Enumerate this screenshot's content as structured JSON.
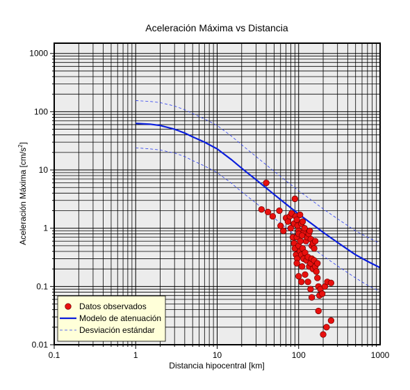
{
  "chart_data": {
    "type": "scatter",
    "title": "Aceleración Máxima vs Distancia",
    "xlabel": "Distancia hipocentral [km]",
    "ylabel_main": "Aceleración Máxima [cm/s",
    "ylabel_sup": "2",
    "ylabel_close": "]",
    "x_scale": "log",
    "y_scale": "log",
    "xlim": [
      0.1,
      1000
    ],
    "ylim": [
      0.01,
      1500
    ],
    "x_ticks": [
      {
        "value": 0.1,
        "label": "0.1"
      },
      {
        "value": 1,
        "label": "1"
      },
      {
        "value": 10,
        "label": "10"
      },
      {
        "value": 100,
        "label": "100"
      },
      {
        "value": 1000,
        "label": "1000"
      }
    ],
    "y_ticks": [
      {
        "value": 0.01,
        "label": "0.01"
      },
      {
        "value": 0.1,
        "label": "0.1"
      },
      {
        "value": 1,
        "label": "1"
      },
      {
        "value": 10,
        "label": "10"
      },
      {
        "value": 100,
        "label": "100"
      },
      {
        "value": 1000,
        "label": "1000"
      }
    ],
    "grid": true,
    "legend_position": "bottom-left",
    "colors": {
      "plot_background": "#ececec",
      "points": "#e8100e",
      "model_line": "#0a1edc",
      "deviation_line": "#2a3cf0",
      "legend_background": "#ffffd9"
    },
    "series": [
      {
        "name": "Datos observados",
        "kind": "points",
        "points": [
          [
            40,
            6.0
          ],
          [
            35,
            2.1
          ],
          [
            42,
            1.9
          ],
          [
            48,
            1.6
          ],
          [
            58,
            2.0
          ],
          [
            60,
            1.1
          ],
          [
            65,
            0.9
          ],
          [
            70,
            1.5
          ],
          [
            74,
            1.3
          ],
          [
            78,
            1.6
          ],
          [
            80,
            1.0
          ],
          [
            82,
            1.8
          ],
          [
            85,
            0.7
          ],
          [
            88,
            1.2
          ],
          [
            90,
            3.2
          ],
          [
            92,
            1.6
          ],
          [
            95,
            1.4
          ],
          [
            97,
            1.1
          ],
          [
            100,
            0.9
          ],
          [
            104,
            1.7
          ],
          [
            108,
            1.2
          ],
          [
            112,
            1.3
          ],
          [
            115,
            0.85
          ],
          [
            118,
            1.0
          ],
          [
            123,
            0.6
          ],
          [
            128,
            0.7
          ],
          [
            133,
            0.8
          ],
          [
            137,
            0.9
          ],
          [
            141,
            0.65
          ],
          [
            145,
            0.5
          ],
          [
            150,
            0.55
          ],
          [
            155,
            0.45
          ],
          [
            160,
            0.6
          ],
          [
            88,
            0.55
          ],
          [
            90,
            0.45
          ],
          [
            93,
            0.35
          ],
          [
            96,
            0.3
          ],
          [
            100,
            0.5
          ],
          [
            104,
            0.4
          ],
          [
            108,
            0.35
          ],
          [
            112,
            0.45
          ],
          [
            115,
            0.3
          ],
          [
            120,
            0.38
          ],
          [
            125,
            0.28
          ],
          [
            130,
            0.32
          ],
          [
            135,
            0.22
          ],
          [
            140,
            0.25
          ],
          [
            145,
            0.3
          ],
          [
            150,
            0.2
          ],
          [
            155,
            0.28
          ],
          [
            160,
            0.22
          ],
          [
            165,
            0.18
          ],
          [
            170,
            0.25
          ],
          [
            95,
            0.25
          ],
          [
            110,
            0.22
          ],
          [
            100,
            0.15
          ],
          [
            108,
            0.12
          ],
          [
            120,
            0.16
          ],
          [
            130,
            0.12
          ],
          [
            140,
            0.09
          ],
          [
            145,
            0.065
          ],
          [
            170,
            0.14
          ],
          [
            175,
            0.1
          ],
          [
            180,
            0.07
          ],
          [
            185,
            0.09
          ],
          [
            195,
            0.075
          ],
          [
            210,
            0.1
          ],
          [
            225,
            0.12
          ],
          [
            250,
            0.115
          ],
          [
            175,
            0.038
          ],
          [
            200,
            0.015
          ],
          [
            220,
            0.02
          ],
          [
            250,
            0.026
          ],
          [
            95,
            0.7
          ],
          [
            105,
            0.6
          ],
          [
            100,
            0.8
          ],
          [
            110,
            0.75
          ]
        ]
      },
      {
        "name": "Modelo de atenuación",
        "kind": "line",
        "style": "solid",
        "points": [
          [
            1,
            63
          ],
          [
            1.5,
            61
          ],
          [
            2,
            58
          ],
          [
            3,
            50
          ],
          [
            4,
            43
          ],
          [
            5,
            37
          ],
          [
            7,
            30
          ],
          [
            10,
            23
          ],
          [
            15,
            15
          ],
          [
            20,
            10.7
          ],
          [
            30,
            6.8
          ],
          [
            50,
            3.8
          ],
          [
            70,
            2.6
          ],
          [
            100,
            1.75
          ],
          [
            150,
            1.15
          ],
          [
            200,
            0.85
          ],
          [
            300,
            0.57
          ],
          [
            500,
            0.35
          ],
          [
            700,
            0.27
          ],
          [
            1000,
            0.21
          ]
        ]
      },
      {
        "name": "Desviación estándar",
        "kind": "line",
        "style": "dashed",
        "points": [
          [
            1,
            155
          ],
          [
            1.5,
            150
          ],
          [
            2,
            143
          ],
          [
            3,
            125
          ],
          [
            4,
            108
          ],
          [
            5,
            93
          ],
          [
            7,
            75
          ],
          [
            10,
            58
          ],
          [
            15,
            38
          ],
          [
            20,
            27
          ],
          [
            30,
            17
          ],
          [
            50,
            9.5
          ],
          [
            70,
            6.5
          ],
          [
            100,
            4.4
          ],
          [
            150,
            2.9
          ],
          [
            200,
            2.15
          ],
          [
            300,
            1.45
          ],
          [
            500,
            0.9
          ],
          [
            700,
            0.7
          ],
          [
            1000,
            0.55
          ]
        ]
      },
      {
        "name": "",
        "kind": "line",
        "style": "dashed",
        "legend": false,
        "points": [
          [
            1,
            24
          ],
          [
            1.5,
            23
          ],
          [
            2,
            22
          ],
          [
            3,
            19.5
          ],
          [
            4,
            17
          ],
          [
            5,
            14.5
          ],
          [
            7,
            11.7
          ],
          [
            10,
            9
          ],
          [
            15,
            5.9
          ],
          [
            20,
            4.2
          ],
          [
            30,
            2.7
          ],
          [
            50,
            1.5
          ],
          [
            70,
            1.02
          ],
          [
            100,
            0.68
          ],
          [
            150,
            0.45
          ],
          [
            200,
            0.335
          ],
          [
            300,
            0.225
          ],
          [
            500,
            0.14
          ],
          [
            700,
            0.105
          ],
          [
            1000,
            0.082
          ]
        ]
      }
    ]
  }
}
